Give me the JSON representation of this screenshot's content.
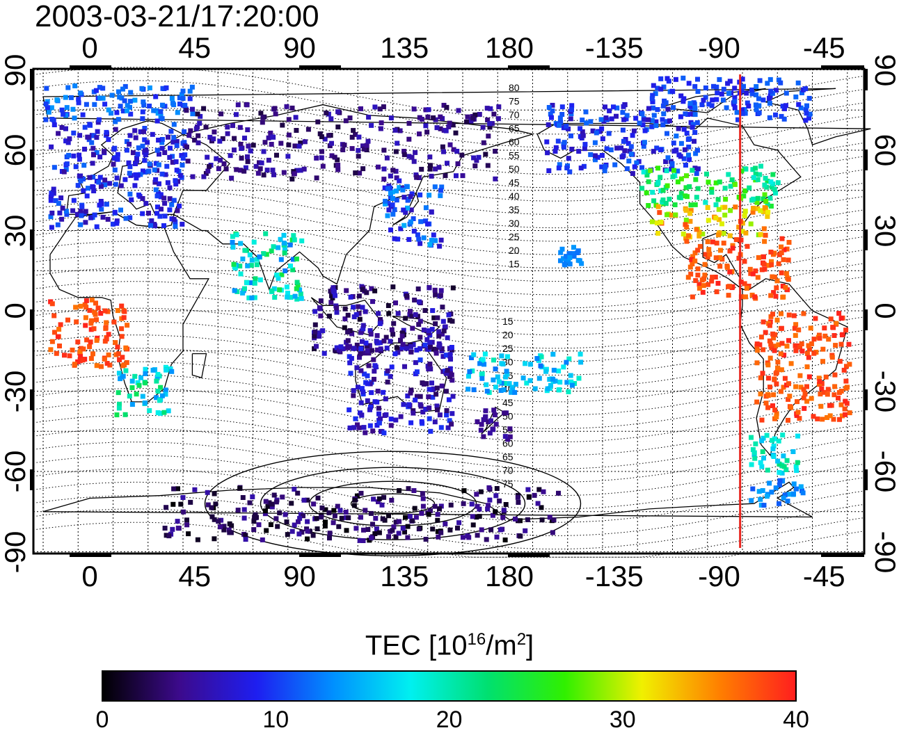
{
  "timestamp": "2003-03-21/17:20:00",
  "axes": {
    "top_lon_labels": [
      "0",
      "45",
      "90",
      "135",
      "180",
      "-135",
      "-90",
      "-45"
    ],
    "bottom_lon_labels": [
      "0",
      "45",
      "90",
      "135",
      "180",
      "-135",
      "-90",
      "-45"
    ],
    "lat_labels": [
      "90",
      "60",
      "30",
      "0",
      "-30",
      "-60",
      "-90"
    ]
  },
  "terminator_lon": -81,
  "terminator_color": "#e8251f",
  "contour_labels_north": [
    "80",
    "75",
    "70",
    "65",
    "60",
    "55",
    "50",
    "45",
    "40",
    "35",
    "30",
    "25",
    "20",
    "15"
  ],
  "contour_labels_south": [
    "15",
    "20",
    "25",
    "30",
    "35",
    "40",
    "45",
    "50",
    "55",
    "60",
    "65",
    "70",
    "75"
  ],
  "colorbar": {
    "title_main": "TEC  [10",
    "title_exp1": "16",
    "title_mid": "/m",
    "title_exp2": "2",
    "title_end": "]",
    "ticks": [
      "0",
      "10",
      "20",
      "30",
      "40"
    ],
    "min": 0,
    "max": 40,
    "colors": [
      "#000000",
      "#3c0a8c",
      "#1e1ef0",
      "#0090ff",
      "#00f0f0",
      "#00e070",
      "#30f000",
      "#f0f000",
      "#ff8000",
      "#ff1e1e"
    ]
  },
  "tec_regions": [
    {
      "name": "europe",
      "lon": [
        -18,
        40
      ],
      "lat": [
        32,
        72
      ],
      "tec": [
        5,
        12
      ]
    },
    {
      "name": "north-atlantic-arctic",
      "lon": [
        -25,
        45
      ],
      "lat": [
        72,
        85
      ],
      "tec": [
        9,
        14
      ]
    },
    {
      "name": "siberia",
      "lon": [
        40,
        175
      ],
      "lat": [
        50,
        78
      ],
      "tec": [
        2,
        7
      ]
    },
    {
      "name": "japan",
      "lon": [
        125,
        150
      ],
      "lat": [
        25,
        50
      ],
      "tec": [
        6,
        15
      ]
    },
    {
      "name": "alaska-canada",
      "lon": [
        -165,
        -100
      ],
      "lat": [
        52,
        78
      ],
      "tec": [
        6,
        12
      ]
    },
    {
      "name": "arctic-canada",
      "lon": [
        -120,
        -52
      ],
      "lat": [
        72,
        88
      ],
      "tec": [
        8,
        12
      ]
    },
    {
      "name": "usa-north",
      "lon": [
        -125,
        -65
      ],
      "lat": [
        40,
        55
      ],
      "tec": [
        18,
        28
      ]
    },
    {
      "name": "usa-south",
      "lon": [
        -120,
        -70
      ],
      "lat": [
        28,
        40
      ],
      "tec": [
        28,
        38
      ]
    },
    {
      "name": "central-america",
      "lon": [
        -105,
        -60
      ],
      "lat": [
        5,
        28
      ],
      "tec": [
        36,
        40
      ]
    },
    {
      "name": "south-america",
      "lon": [
        -75,
        -35
      ],
      "lat": [
        -40,
        0
      ],
      "tec": [
        36,
        40
      ]
    },
    {
      "name": "patagonia",
      "lon": [
        -78,
        -55
      ],
      "lat": [
        -60,
        -45
      ],
      "tec": [
        15,
        22
      ]
    },
    {
      "name": "antarctic-peninsula",
      "lon": [
        -80,
        -55
      ],
      "lat": [
        -72,
        -62
      ],
      "tec": [
        11,
        15
      ]
    },
    {
      "name": "africa-south",
      "lon": [
        10,
        35
      ],
      "lat": [
        -38,
        -20
      ],
      "tec": [
        13,
        24
      ]
    },
    {
      "name": "africa-west",
      "lon": [
        -18,
        15
      ],
      "lat": [
        -20,
        5
      ],
      "tec": [
        36,
        40
      ]
    },
    {
      "name": "india",
      "lon": [
        60,
        90
      ],
      "lat": [
        5,
        30
      ],
      "tec": [
        12,
        25
      ]
    },
    {
      "name": "indonesia",
      "lon": [
        95,
        155
      ],
      "lat": [
        -15,
        10
      ],
      "tec": [
        1,
        8
      ]
    },
    {
      "name": "australia",
      "lon": [
        110,
        155
      ],
      "lat": [
        -45,
        -10
      ],
      "tec": [
        3,
        10
      ]
    },
    {
      "name": "new-zealand",
      "lon": [
        165,
        180
      ],
      "lat": [
        -48,
        -35
      ],
      "tec": [
        4,
        6
      ]
    },
    {
      "name": "pacific-islands",
      "lon": [
        160,
        210
      ],
      "lat": [
        -30,
        -15
      ],
      "tec": [
        12,
        20
      ]
    },
    {
      "name": "hawaii",
      "lon": [
        -160,
        -150
      ],
      "lat": [
        18,
        25
      ],
      "tec": [
        12,
        14
      ]
    },
    {
      "name": "antarctica",
      "lon": [
        30,
        200
      ],
      "lat": [
        -85,
        -65
      ],
      "tec": [
        0,
        6
      ]
    }
  ]
}
